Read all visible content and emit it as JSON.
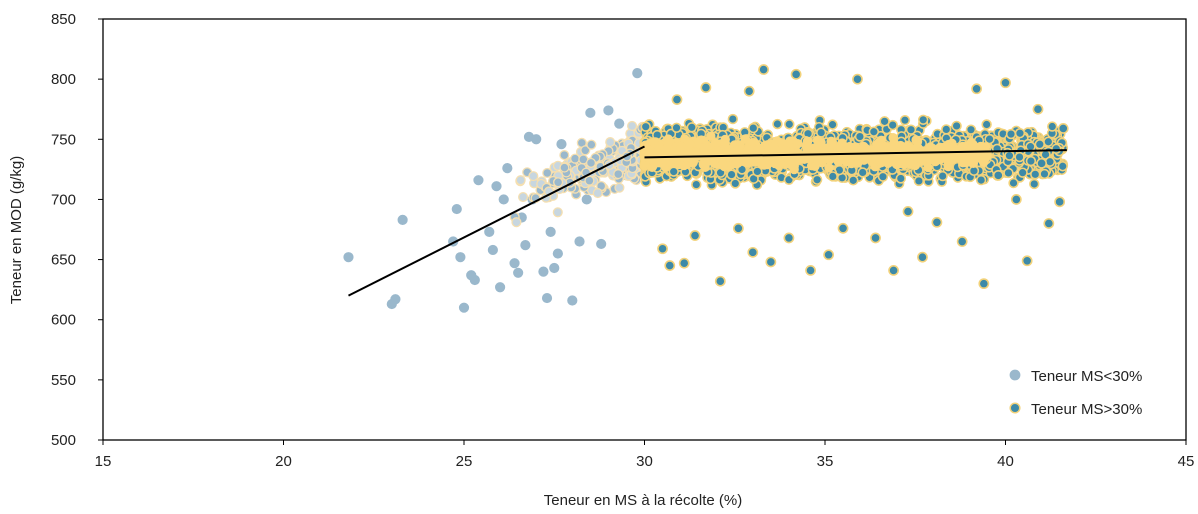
{
  "chart_data": {
    "type": "scatter",
    "title": "",
    "xlabel": "Teneur en MS à la récolte (%)",
    "ylabel": "Teneur en MOD (g/kg)",
    "xlim": [
      15,
      45
    ],
    "ylim": [
      500,
      850
    ],
    "xticks": [
      "15",
      "20",
      "25",
      "30",
      "35",
      "40",
      "45"
    ],
    "yticks": [
      "500",
      "550",
      "600",
      "650",
      "700",
      "750",
      "800",
      "850"
    ],
    "grid": false,
    "legend_position": "bottom-right",
    "colors": {
      "low_fill": "#9ab8cc",
      "high_fill": "#3d8aa8",
      "high_edge": "#f2d27a",
      "low_overlay": "#f5dfb0",
      "high_overlay": "#fad77e",
      "trend": "#000000"
    },
    "series": [
      {
        "name": "Teneur MS<30%",
        "marker": "circle",
        "points": [
          [
            21.8,
            652
          ],
          [
            23.0,
            613
          ],
          [
            23.1,
            617
          ],
          [
            23.3,
            683
          ],
          [
            24.7,
            665
          ],
          [
            24.8,
            692
          ],
          [
            25.0,
            610
          ],
          [
            25.2,
            637
          ],
          [
            25.3,
            633
          ],
          [
            25.4,
            716
          ],
          [
            25.7,
            673
          ],
          [
            25.8,
            658
          ],
          [
            25.9,
            711
          ],
          [
            26.0,
            627
          ],
          [
            26.1,
            700
          ],
          [
            26.2,
            726
          ],
          [
            26.4,
            647
          ],
          [
            26.5,
            639
          ],
          [
            26.6,
            685
          ],
          [
            26.7,
            662
          ],
          [
            26.8,
            752
          ],
          [
            27.0,
            750
          ],
          [
            27.2,
            640
          ],
          [
            27.3,
            618
          ],
          [
            27.4,
            673
          ],
          [
            27.5,
            643
          ],
          [
            27.6,
            655
          ],
          [
            27.7,
            746
          ],
          [
            28.0,
            616
          ],
          [
            28.2,
            665
          ],
          [
            28.5,
            772
          ],
          [
            28.8,
            663
          ],
          [
            29.0,
            774
          ],
          [
            29.3,
            763
          ],
          [
            29.8,
            805
          ],
          [
            24.9,
            652
          ],
          [
            26.9,
            700
          ],
          [
            27.9,
            720
          ],
          [
            28.4,
            700
          ],
          [
            29.5,
            720
          ]
        ],
        "dense_cloud": {
          "x_range": [
            26.2,
            30.0
          ],
          "y_range": [
            670,
            770
          ],
          "count": 260
        }
      },
      {
        "name": "Teneur MS>30%",
        "marker": "circle",
        "points": [
          [
            30.5,
            659
          ],
          [
            30.7,
            645
          ],
          [
            31.1,
            647
          ],
          [
            32.1,
            632
          ],
          [
            32.6,
            676
          ],
          [
            33.0,
            656
          ],
          [
            33.5,
            648
          ],
          [
            33.3,
            808
          ],
          [
            34.2,
            804
          ],
          [
            34.0,
            668
          ],
          [
            34.6,
            641
          ],
          [
            35.1,
            654
          ],
          [
            35.9,
            800
          ],
          [
            36.9,
            641
          ],
          [
            37.7,
            652
          ],
          [
            39.4,
            630
          ],
          [
            40.0,
            797
          ],
          [
            40.6,
            649
          ],
          [
            40.9,
            775
          ],
          [
            41.5,
            698
          ],
          [
            41.6,
            759
          ],
          [
            41.2,
            680
          ],
          [
            40.3,
            700
          ],
          [
            39.2,
            792
          ],
          [
            38.8,
            665
          ],
          [
            37.3,
            690
          ],
          [
            36.4,
            668
          ],
          [
            35.5,
            676
          ],
          [
            31.7,
            793
          ],
          [
            32.9,
            790
          ],
          [
            31.4,
            670
          ],
          [
            38.1,
            681
          ],
          [
            39.8,
            720
          ],
          [
            41.0,
            730
          ],
          [
            30.9,
            783
          ]
        ],
        "dense_cloud": {
          "x_range": [
            30.0,
            41.6
          ],
          "y_range": [
            665,
            795
          ],
          "count": 2000
        }
      }
    ],
    "trend_lines": [
      {
        "x": [
          21.8,
          30.0
        ],
        "y": [
          620,
          744
        ]
      },
      {
        "x": [
          30.0,
          41.7
        ],
        "y": [
          735,
          741
        ]
      }
    ]
  },
  "legend": {
    "items": [
      "Teneur MS<30%",
      "Teneur MS>30%"
    ]
  }
}
